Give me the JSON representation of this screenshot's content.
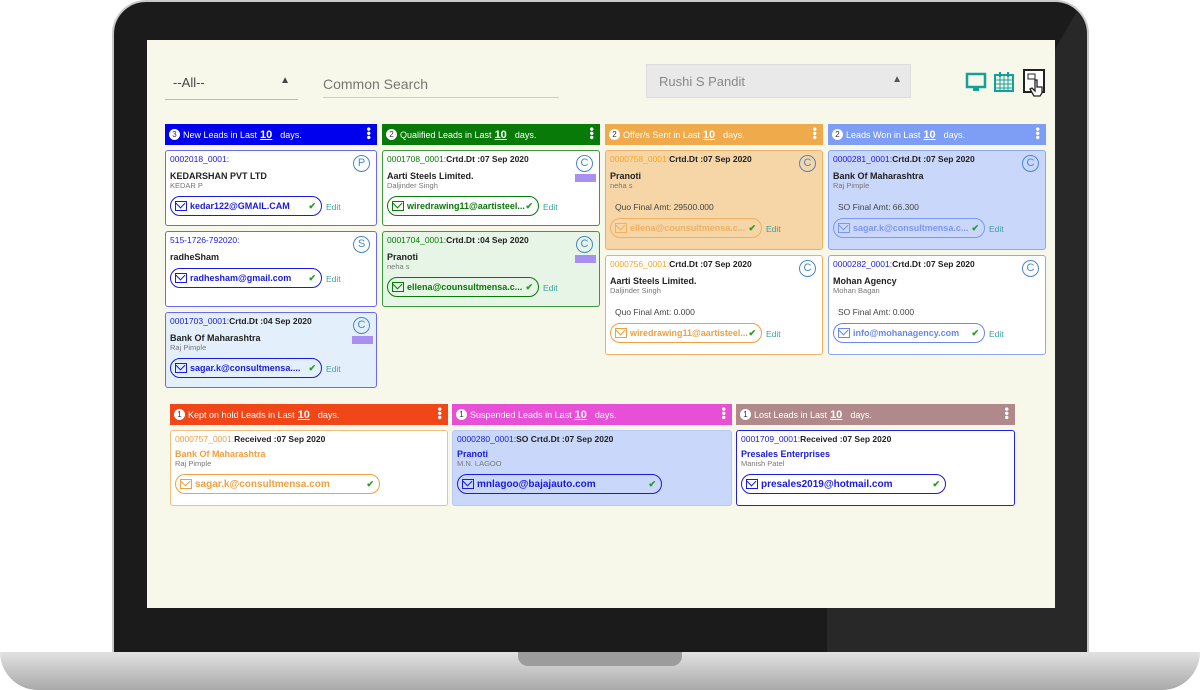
{
  "filters": {
    "status_select": "--All--",
    "search_placeholder": "Common Search",
    "user_select": "Rushi S Pandit"
  },
  "toolbar_icons": [
    "monitor-icon",
    "calendar-icon",
    "touch-panel-icon"
  ],
  "days_label": "days.",
  "columns": [
    {
      "title": "New Leads in Last",
      "days": "10",
      "count": "3",
      "color": "#0000ee",
      "border": "#6a6af0",
      "id_color": "#1a1ae0",
      "cards": [
        {
          "id": "0002018_0001:",
          "date": "",
          "company": "KEDARSHAN PVT LTD",
          "contact": "KEDAR P",
          "email": "kedar122@GMAIL.CAM",
          "badge": "P",
          "bg": "#ffffff",
          "email_color": "#1a1ae0"
        },
        {
          "id": "515-1726-792020:",
          "date": "",
          "company": "radheSham",
          "contact": "",
          "email": "radhesham@gmail.com",
          "badge": "S",
          "bg": "#ffffff",
          "email_color": "#1a1ae0"
        },
        {
          "id": "0001703_0001:",
          "date": "Crtd.Dt :04 Sep 2020",
          "company": "Bank Of Maharashtra",
          "contact": "Raj Pimple",
          "email": "sagar.k@consultmensa....",
          "badge": "C",
          "tag": true,
          "bg": "#e4effc",
          "email_color": "#1a1ae0"
        }
      ]
    },
    {
      "title": "Qualified Leads in Last",
      "days": "10",
      "count": "2",
      "color": "#087a08",
      "border": "#3d9a3d",
      "id_color": "#087a08",
      "cards": [
        {
          "id": "0001708_0001:",
          "date": "Crtd.Dt :07 Sep 2020",
          "company": "Aarti Steels Limited.",
          "contact": "Daljinder Singh",
          "email": "wiredrawing11@aartisteel...",
          "badge": "C",
          "tag": true,
          "bg": "#ffffff",
          "email_color": "#087a08"
        },
        {
          "id": "0001704_0001:",
          "date": "Crtd.Dt :04 Sep 2020",
          "company": "Pranoti",
          "contact": "neha s",
          "email": "ellena@counsultmensa.c...",
          "badge": "C",
          "tag": true,
          "bg": "#e6f5e6",
          "email_color": "#087a08"
        }
      ]
    },
    {
      "title": "Offer/s Sent in Last",
      "days": "10",
      "count": "2",
      "color": "#efaa4b",
      "border": "#efb060",
      "id_color": "#f5a623",
      "cards": [
        {
          "id": "0000758_0001:",
          "date": "Crtd.Dt :07 Sep 2020",
          "company": "Pranoti",
          "contact": "neha s",
          "amount": "Quo Final Amt: 29500.000",
          "email": "ellena@counsultmensa.c...",
          "badge": "C",
          "bg": "#f6d6a6",
          "email_color": "#f0b060"
        },
        {
          "id": "0000756_0001:",
          "date": "Crtd.Dt :07 Sep 2020",
          "company": "Aarti Steels Limited.",
          "contact": "Daljinder Singh",
          "amount": "Quo Final Amt: 0.000",
          "email": "wiredrawing11@aartisteel...",
          "badge": "C",
          "bg": "#ffffff",
          "email_color": "#f0a040"
        }
      ]
    },
    {
      "title": "Leads Won in Last",
      "days": "10",
      "count": "2",
      "color": "#7e9ef5",
      "border": "#8ea8f0",
      "id_color": "#1a1ae0",
      "cards": [
        {
          "id": "0000281_0001:",
          "date": "Crtd.Dt :07 Sep 2020",
          "company": "Bank Of Maharashtra",
          "contact": "Raj Pimple",
          "amount": "SO Final Amt: 66.300",
          "email": "sagar.k@consultmensa.c...",
          "badge": "C",
          "bg": "#c9d7fb",
          "email_color": "#7e96f0"
        },
        {
          "id": "0000282_0001:",
          "date": "Crtd.Dt :07 Sep 2020",
          "company": "Mohan Agency",
          "contact": "Mohan Bagan",
          "amount": "SO Final Amt: 0.000",
          "email": "info@mohanagency.com",
          "badge": "C",
          "bg": "#ffffff",
          "email_color": "#6a86f0"
        }
      ]
    },
    {
      "title": "Kept on hold Leads in Last",
      "days": "10",
      "count": "1",
      "color": "#f04618",
      "border": "#f2c07a",
      "id_color": "#f0a040",
      "cards": [
        {
          "id": "0000757_0001:",
          "date": "Received :07 Sep 2020",
          "company": "Bank Of Maharashtra",
          "company_color": "#f0a040",
          "contact": "Raj Pimple",
          "email": "sagar.k@consultmensa.com",
          "bg": "#ffffff",
          "email_color": "#f0a040"
        }
      ]
    },
    {
      "title": "Suspended Leads in Last",
      "days": "10",
      "count": "1",
      "color": "#e64fd6",
      "border": "#b9c7f5",
      "id_color": "#1a1ae0",
      "cards": [
        {
          "id": "0000280_0001:",
          "date": "SO Crtd.Dt :07 Sep 2020",
          "company": "Pranoti",
          "company_color": "#1a1ae0",
          "contact": "M.N. LAGOO",
          "email": "mnlagoo@bajajauto.com",
          "bg": "#c9d7fb",
          "email_color": "#1a1ae0"
        }
      ]
    },
    {
      "title": "Lost Leads in Last",
      "days": "10",
      "count": "1",
      "color": "#b08a8a",
      "border": "#2020e0",
      "id_color": "#1a1ae0",
      "cards": [
        {
          "id": "0001709_0001:",
          "date": "Received :07 Sep 2020",
          "company": "Presales Enterprises",
          "company_color": "#1a1ae0",
          "contact": "Manish Patel",
          "email": "presales2019@hotmail.com",
          "bg": "#ffffff",
          "email_color": "#1a1ae0"
        }
      ]
    }
  ],
  "edit_label": "Edit"
}
